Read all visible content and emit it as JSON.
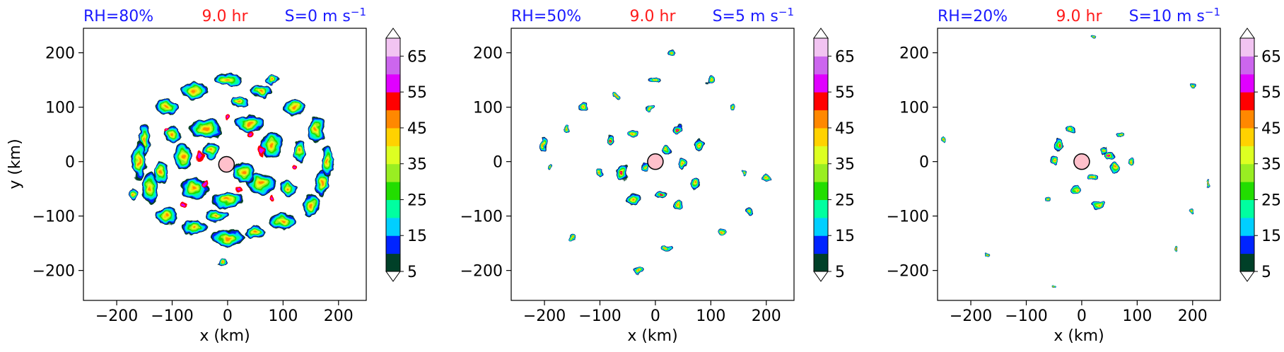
{
  "chart_data": {
    "type": "heatmap",
    "xlabel": "x (km)",
    "ylabel": "y (km)",
    "xlim": [
      -260,
      250
    ],
    "ylim": [
      -255,
      245
    ],
    "xticks": [
      -200,
      -100,
      0,
      100,
      200
    ],
    "yticks": [
      -200,
      -100,
      0,
      100,
      200
    ],
    "colorbar": {
      "levels": [
        5,
        10,
        15,
        20,
        25,
        30,
        35,
        40,
        45,
        50,
        55,
        60,
        65,
        70
      ],
      "tick_labels": [
        "5",
        "15",
        "25",
        "35",
        "45",
        "55",
        "65"
      ],
      "colors": [
        "#004028",
        "#0024ff",
        "#00cfff",
        "#00ffa0",
        "#22dd00",
        "#99ee22",
        "#ddff22",
        "#ffd200",
        "#ff8800",
        "#ff0000",
        "#e000ff",
        "#cc66ee",
        "#f2c4f2"
      ],
      "extend": "both"
    },
    "panels": [
      {
        "title_left": "RH=80%",
        "title_center": "9.0 hr",
        "title_right": "S=0 m s",
        "title_right_exp": "−1",
        "show_ylabel": true,
        "eye_center": [
          -2,
          -5
        ],
        "cells": [
          [
            -150,
            40,
            10,
            30
          ],
          [
            -160,
            0,
            12,
            35
          ],
          [
            -140,
            -50,
            15,
            30
          ],
          [
            -110,
            -100,
            20,
            15
          ],
          [
            -60,
            -120,
            25,
            12
          ],
          [
            0,
            -140,
            30,
            15
          ],
          [
            50,
            -130,
            20,
            12
          ],
          [
            100,
            -110,
            25,
            15
          ],
          [
            150,
            -80,
            15,
            20
          ],
          [
            170,
            -40,
            12,
            25
          ],
          [
            180,
            0,
            10,
            30
          ],
          [
            160,
            60,
            15,
            25
          ],
          [
            120,
            100,
            20,
            15
          ],
          [
            60,
            130,
            20,
            12
          ],
          [
            0,
            150,
            25,
            12
          ],
          [
            -60,
            130,
            25,
            15
          ],
          [
            -110,
            100,
            20,
            15
          ],
          [
            -40,
            60,
            30,
            18
          ],
          [
            40,
            70,
            25,
            15
          ],
          [
            80,
            30,
            20,
            25
          ],
          [
            60,
            -40,
            25,
            20
          ],
          [
            0,
            -70,
            30,
            15
          ],
          [
            -60,
            -50,
            25,
            20
          ],
          [
            -80,
            10,
            15,
            25
          ],
          [
            -30,
            20,
            15,
            15
          ],
          [
            30,
            -20,
            20,
            20
          ],
          [
            -100,
            50,
            15,
            15
          ],
          [
            110,
            -50,
            15,
            15
          ],
          [
            -120,
            -20,
            12,
            20
          ],
          [
            130,
            20,
            12,
            20
          ],
          [
            20,
            110,
            18,
            10
          ],
          [
            -20,
            -100,
            20,
            12
          ],
          [
            -10,
            -185,
            10,
            6
          ],
          [
            80,
            150,
            10,
            8
          ],
          [
            -170,
            -60,
            8,
            10
          ]
        ],
        "cores": [
          [
            -50,
            10,
            6,
            12
          ],
          [
            40,
            50,
            8,
            6
          ],
          [
            60,
            20,
            5,
            10
          ],
          [
            20,
            -50,
            6,
            5
          ],
          [
            -40,
            -40,
            5,
            5
          ],
          [
            -80,
            -80,
            6,
            5
          ],
          [
            80,
            -70,
            5,
            6
          ],
          [
            0,
            80,
            5,
            5
          ],
          [
            -110,
            60,
            4,
            4
          ],
          [
            120,
            -10,
            4,
            5
          ]
        ]
      },
      {
        "title_left": "RH=50%",
        "title_center": "9.0 hr",
        "title_right": "S=5 m s",
        "title_right_exp": "−1",
        "show_ylabel": false,
        "eye_center": [
          0,
          0
        ],
        "cells": [
          [
            -80,
            40,
            8,
            12
          ],
          [
            -60,
            -20,
            10,
            15
          ],
          [
            -40,
            -70,
            12,
            10
          ],
          [
            10,
            -60,
            10,
            8
          ],
          [
            40,
            -80,
            10,
            8
          ],
          [
            70,
            -40,
            8,
            12
          ],
          [
            80,
            30,
            10,
            10
          ],
          [
            40,
            60,
            10,
            8
          ],
          [
            -10,
            100,
            8,
            6
          ],
          [
            -40,
            50,
            8,
            8
          ],
          [
            20,
            20,
            8,
            8
          ],
          [
            -20,
            -10,
            6,
            8
          ],
          [
            50,
            -5,
            8,
            10
          ],
          [
            -100,
            -20,
            6,
            8
          ],
          [
            -130,
            100,
            8,
            8
          ],
          [
            -200,
            30,
            6,
            12
          ],
          [
            -160,
            60,
            5,
            6
          ],
          [
            0,
            150,
            10,
            6
          ],
          [
            30,
            200,
            8,
            6
          ],
          [
            100,
            150,
            8,
            8
          ],
          [
            120,
            -130,
            6,
            6
          ],
          [
            170,
            -90,
            8,
            8
          ],
          [
            200,
            -30,
            6,
            8
          ],
          [
            -30,
            -200,
            10,
            6
          ],
          [
            20,
            -160,
            10,
            6
          ],
          [
            -150,
            -140,
            5,
            5
          ],
          [
            -190,
            -10,
            4,
            5
          ],
          [
            140,
            100,
            6,
            6
          ],
          [
            -70,
            120,
            5,
            5
          ],
          [
            160,
            -20,
            5,
            5
          ]
        ],
        "cores": [
          [
            -60,
            -20,
            3,
            4
          ],
          [
            40,
            60,
            3,
            3
          ],
          [
            -80,
            40,
            3,
            3
          ],
          [
            10,
            -60,
            3,
            3
          ]
        ]
      },
      {
        "title_left": "RH=20%",
        "title_center": "9.0 hr",
        "title_right": "S=10 m s",
        "title_right_exp": "−1",
        "show_ylabel": false,
        "eye_center": [
          0,
          0
        ],
        "cells": [
          [
            -40,
            30,
            8,
            10
          ],
          [
            -50,
            0,
            6,
            8
          ],
          [
            -20,
            60,
            10,
            6
          ],
          [
            20,
            -30,
            10,
            6
          ],
          [
            50,
            10,
            8,
            8
          ],
          [
            60,
            -10,
            6,
            10
          ],
          [
            70,
            50,
            8,
            6
          ],
          [
            40,
            20,
            6,
            8
          ],
          [
            -10,
            -50,
            8,
            6
          ],
          [
            30,
            -80,
            10,
            6
          ],
          [
            -60,
            -70,
            5,
            5
          ],
          [
            90,
            0,
            6,
            6
          ],
          [
            -250,
            40,
            4,
            6
          ],
          [
            200,
            140,
            5,
            5
          ],
          [
            200,
            -90,
            4,
            6
          ],
          [
            -170,
            -170,
            4,
            4
          ],
          [
            -50,
            -230,
            4,
            3
          ],
          [
            20,
            230,
            6,
            4
          ],
          [
            230,
            -40,
            3,
            5
          ],
          [
            170,
            -160,
            3,
            4
          ]
        ],
        "cores": [
          [
            -40,
            30,
            2,
            3
          ],
          [
            50,
            10,
            2,
            2
          ]
        ]
      }
    ]
  }
}
